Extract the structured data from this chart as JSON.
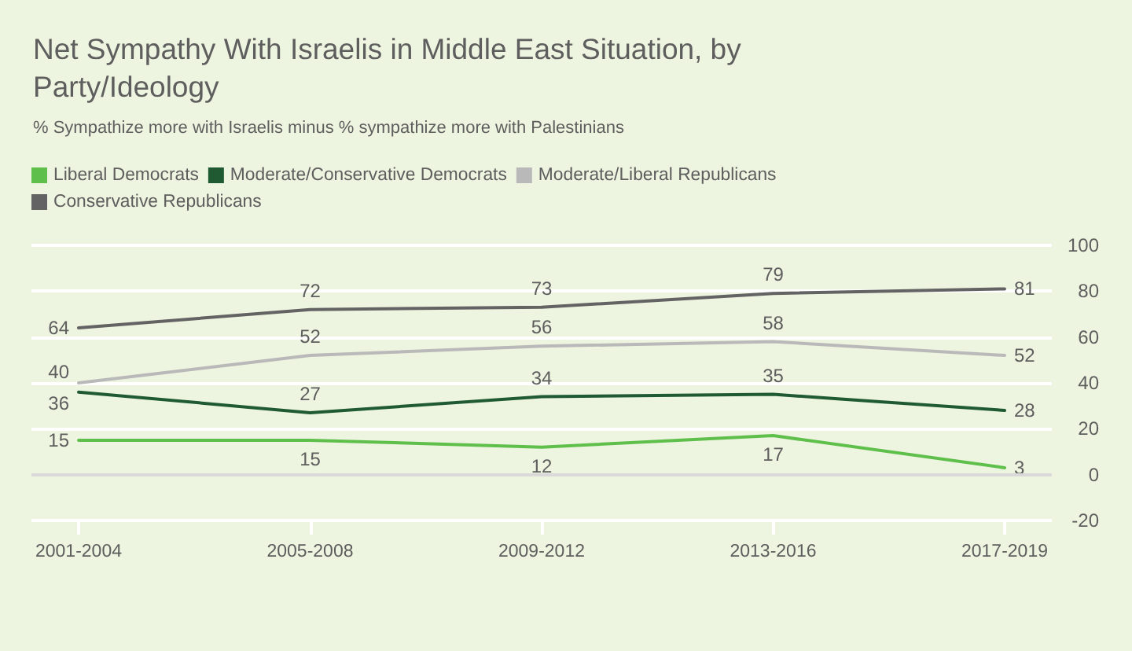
{
  "chart_data": {
    "type": "line",
    "title": "Net Sympathy With Israelis in Middle East Situation, by Party/Ideology",
    "subtitle": "% Sympathize more with Israelis minus % sympathize more with Palestinians",
    "categories": [
      "2001-2004",
      "2005-2008",
      "2009-2012",
      "2013-2016",
      "2017-2019"
    ],
    "series": [
      {
        "name": "Liberal Democrats",
        "color": "#5fbf4b",
        "values": [
          15,
          15,
          12,
          17,
          3
        ]
      },
      {
        "name": "Moderate/Conservative Democrats",
        "color": "#1f5a33",
        "values": [
          36,
          27,
          34,
          35,
          28
        ]
      },
      {
        "name": "Moderate/Liberal Republicans",
        "color": "#b9b9b9",
        "values": [
          40,
          52,
          56,
          58,
          52
        ]
      },
      {
        "name": "Conservative Republicans",
        "color": "#636363",
        "values": [
          64,
          72,
          73,
          79,
          81
        ]
      }
    ],
    "ylim": [
      -20,
      100
    ],
    "yticks": [
      -20,
      0,
      20,
      40,
      60,
      80,
      100
    ],
    "grid": "y",
    "legend": "top left",
    "data_labels": true,
    "marker": "none",
    "line_style": "solid",
    "ref_lines": [
      {
        "axis": "y",
        "value": 0,
        "color": "#d9d9d9"
      }
    ]
  }
}
